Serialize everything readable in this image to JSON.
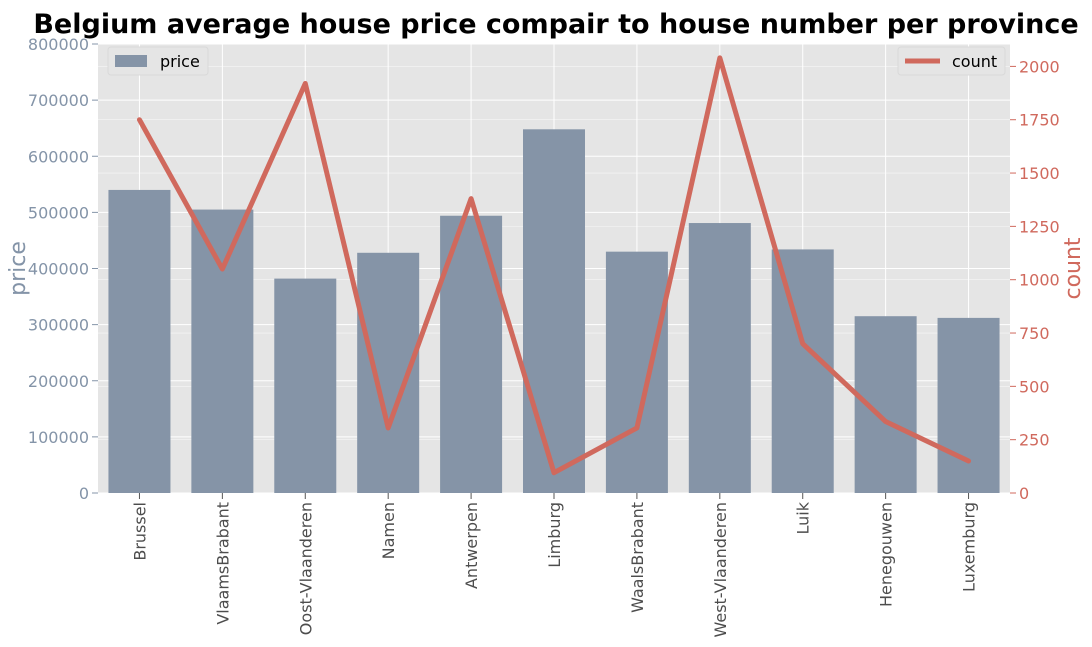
{
  "chart_data": {
    "type": "bar",
    "title": "Belgium average house price compair to house number per province",
    "categories": [
      "Brussel",
      "VlaamsBrabant",
      "Oost-Vlaanderen",
      "Namen",
      "Antwerpen",
      "Limburg",
      "WaalsBrabant",
      "West-Vlaanderen",
      "Luik",
      "Henegouwen",
      "Luxemburg"
    ],
    "series": [
      {
        "name": "price",
        "type": "bar",
        "axis": "left",
        "color": "#8594a7",
        "values": [
          540000,
          505000,
          382000,
          428000,
          494000,
          648000,
          430000,
          481000,
          434000,
          315000,
          312000
        ]
      },
      {
        "name": "count",
        "type": "line",
        "axis": "right",
        "color": "#d0695d",
        "values": [
          1750,
          1050,
          1920,
          305,
          1380,
          95,
          305,
          2040,
          700,
          335,
          150
        ]
      }
    ],
    "ylabel": "price",
    "y2label": "count",
    "ylim": [
      0,
      800000
    ],
    "y2lim": [
      0,
      2105
    ],
    "yticks": [
      "0",
      "100000",
      "200000",
      "300000",
      "400000",
      "500000",
      "600000",
      "700000",
      "800000"
    ],
    "y2ticks": [
      "0",
      "250",
      "500",
      "750",
      "1000",
      "1250",
      "1500",
      "1750",
      "2000"
    ],
    "grid": true,
    "legend": [
      {
        "label": "price",
        "placement": "top-left"
      },
      {
        "label": "count",
        "placement": "top-right"
      }
    ],
    "colors": {
      "plot_background": "#e5e5e5",
      "grid": "#ffffff",
      "left_axis": "#8494a8",
      "right_axis": "#d0695d"
    }
  }
}
